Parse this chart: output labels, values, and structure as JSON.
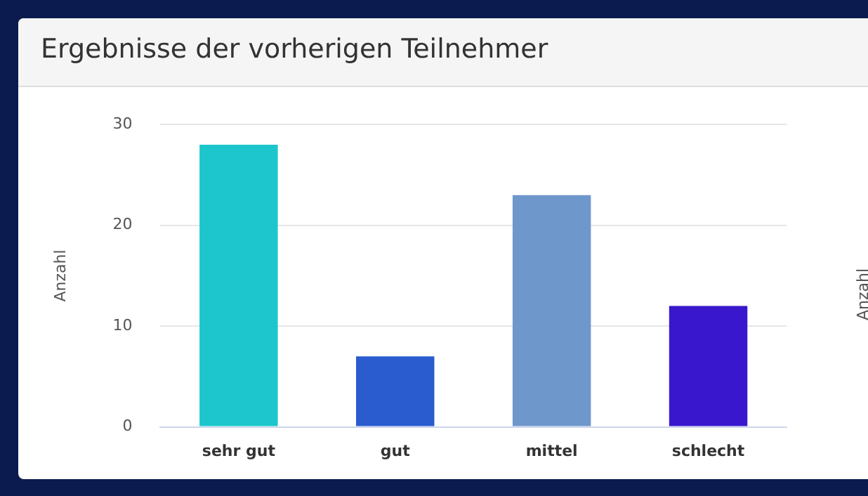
{
  "chart_data": {
    "type": "bar",
    "title": "Ergebnisse der vorherigen Teilnehmer",
    "ylabel": "Anzahl",
    "categories": [
      "sehr gut",
      "gut",
      "mittel",
      "schlecht"
    ],
    "values": [
      28,
      7,
      23,
      12
    ],
    "colors": [
      "#1cc6cc",
      "#2a5bcf",
      "#6e97cc",
      "#3917cd"
    ],
    "ylim": [
      0,
      30
    ],
    "yticks": [
      0,
      10,
      20,
      30
    ],
    "grid": "y",
    "legend": false,
    "annotations": [
      "Anzahl"
    ]
  }
}
